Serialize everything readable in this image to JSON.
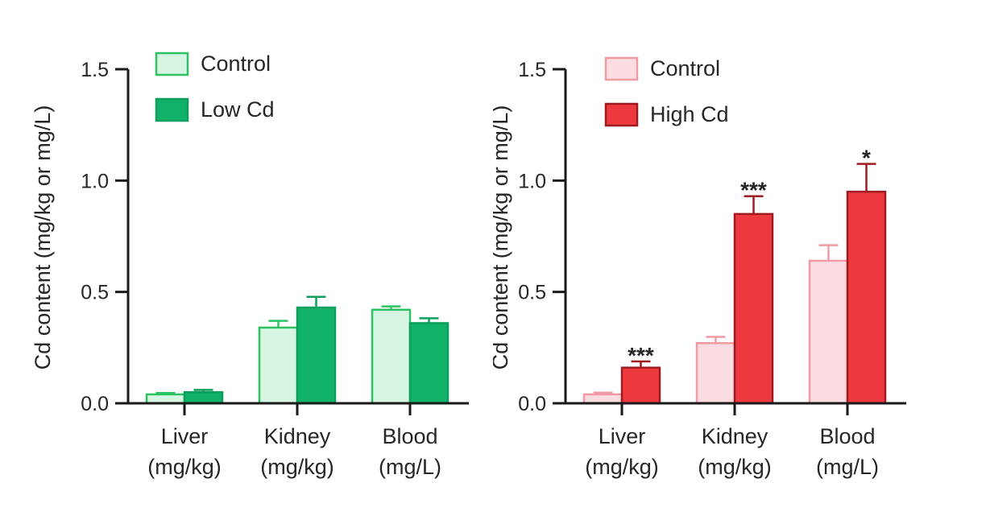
{
  "figure": {
    "background": "#ffffff",
    "text_color": "#262626",
    "axis_color": "#1a1a1a",
    "significance_color": "#111111"
  },
  "chart_data": [
    {
      "type": "bar",
      "panel": "left",
      "title": "",
      "ylabel": "Cd content (mg/kg or mg/L)",
      "xlabel": "",
      "ylim": [
        0,
        1.5
      ],
      "ytick_labels": [
        "0.0",
        "0.5",
        "1.0",
        "1.5"
      ],
      "ytick_values": [
        0,
        0.5,
        1.0,
        1.5
      ],
      "categories": [
        "Liver",
        "Kidney",
        "Blood"
      ],
      "category_units": [
        "(mg/kg)",
        "(mg/kg)",
        "(mg/L)"
      ],
      "grid": false,
      "legend_position": "top-left-inside",
      "series": [
        {
          "name": "Control",
          "values": [
            0.04,
            0.34,
            0.42
          ],
          "errors": [
            0.006,
            0.03,
            0.015
          ],
          "fill": "#d7f5e3",
          "stroke": "#2cc261",
          "significance": [
            "",
            "",
            ""
          ]
        },
        {
          "name": "Low Cd",
          "values": [
            0.05,
            0.43,
            0.36
          ],
          "errors": [
            0.01,
            0.048,
            0.022
          ],
          "fill": "#10b168",
          "stroke": "#0d9e5d",
          "significance": [
            "",
            "",
            ""
          ]
        }
      ]
    },
    {
      "type": "bar",
      "panel": "right",
      "title": "",
      "ylabel": "Cd content (mg/kg or mg/L)",
      "xlabel": "",
      "ylim": [
        0,
        1.5
      ],
      "ytick_labels": [
        "0.0",
        "0.5",
        "1.0",
        "1.5"
      ],
      "ytick_values": [
        0,
        0.5,
        1.0,
        1.5
      ],
      "categories": [
        "Liver",
        "Kidney",
        "Blood"
      ],
      "category_units": [
        "(mg/kg)",
        "(mg/kg)",
        "(mg/L)"
      ],
      "grid": false,
      "legend_position": "top-left-inside",
      "series": [
        {
          "name": "Control",
          "values": [
            0.04,
            0.27,
            0.64
          ],
          "errors": [
            0.008,
            0.028,
            0.07
          ],
          "fill": "#fbdce0",
          "stroke": "#f09aa5",
          "significance": [
            "",
            "",
            ""
          ]
        },
        {
          "name": "High Cd",
          "values": [
            0.16,
            0.85,
            0.95
          ],
          "errors": [
            0.028,
            0.08,
            0.125
          ],
          "fill": "#ee3a3e",
          "stroke": "#9e1c21",
          "significance": [
            "***",
            "***",
            "*"
          ]
        }
      ]
    }
  ]
}
